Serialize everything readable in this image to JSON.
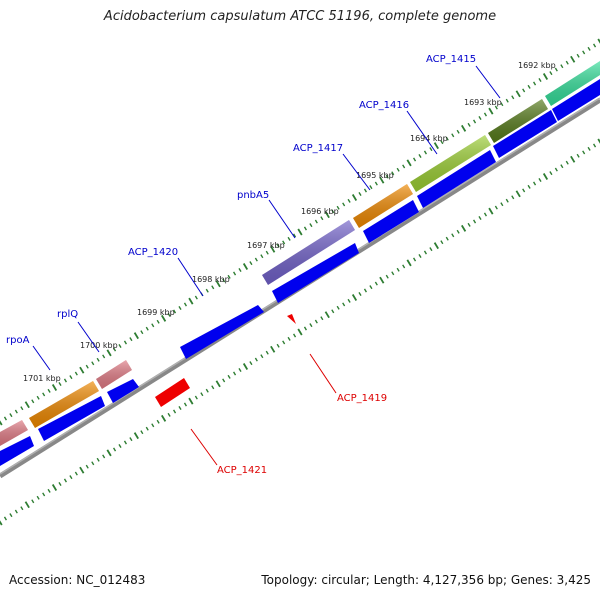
{
  "title": "Acidobacterium capsulatum ATCC 51196, complete genome",
  "footer": {
    "accession": "Accession: NC_012483",
    "summary": "Topology: circular; Length: 4,127,356 bp; Genes: 3,425"
  },
  "ticks": [
    {
      "label": "1692 kbp",
      "kbp": 1692
    },
    {
      "label": "1693 kbp",
      "kbp": 1693
    },
    {
      "label": "1694 kbp",
      "kbp": 1694
    },
    {
      "label": "1695 kbp",
      "kbp": 1695
    },
    {
      "label": "1696 kbp",
      "kbp": 1696
    },
    {
      "label": "1697 kbp",
      "kbp": 1697
    },
    {
      "label": "1698 kbp",
      "kbp": 1698
    },
    {
      "label": "1699 kbp",
      "kbp": 1699
    },
    {
      "label": "1700 kbp",
      "kbp": 1700
    },
    {
      "label": "1701 kbp",
      "kbp": 1701
    }
  ],
  "gene_labels": [
    {
      "text": "ACP_1415",
      "color": "#0000cc"
    },
    {
      "text": "ACP_1416",
      "color": "#0000cc"
    },
    {
      "text": "ACP_1417",
      "color": "#0000cc"
    },
    {
      "text": "pnbA5",
      "color": "#0000cc"
    },
    {
      "text": "ACP_1420",
      "color": "#0000cc"
    },
    {
      "text": "rplQ",
      "color": "#0000cc"
    },
    {
      "text": "rpoA",
      "color": "#0000cc"
    },
    {
      "text": "ACP_1419",
      "color": "#dd0000"
    },
    {
      "text": "ACP_1421",
      "color": "#dd0000"
    }
  ],
  "colors": {
    "backbone": "#888888",
    "tick": "#2e7d32",
    "forward_cds": "#0000ee",
    "reverse_cds": "#ee0000"
  }
}
